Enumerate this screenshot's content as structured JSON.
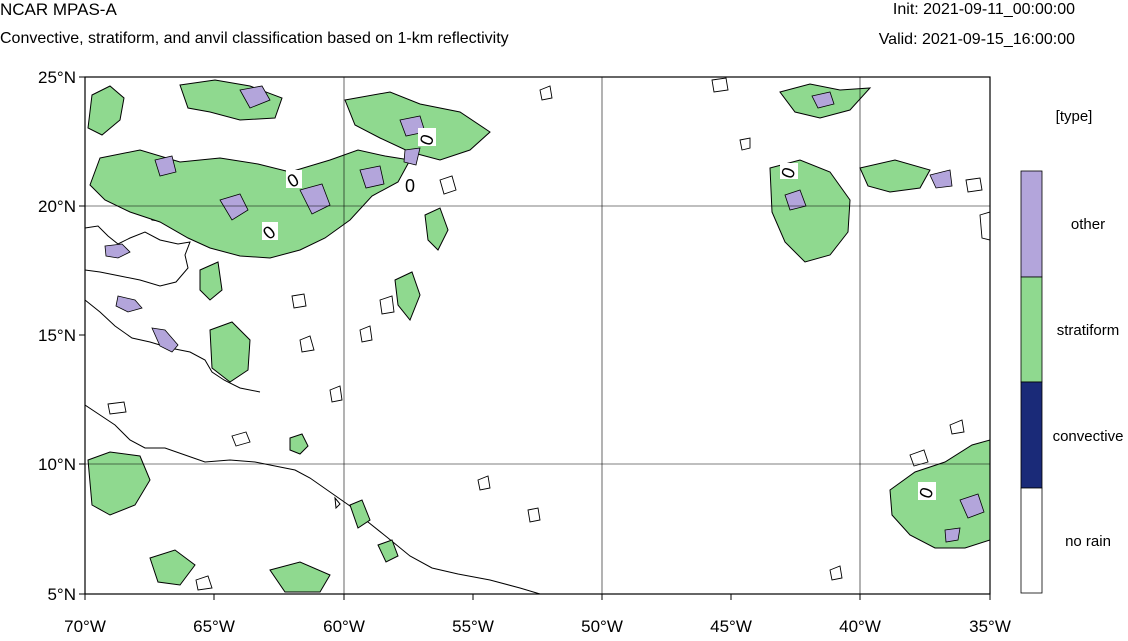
{
  "header": {
    "model": "NCAR MPAS-A",
    "description": "Convective, stratiform, and anvil classification based on 1-km reflectivity",
    "init": "Init: 2021-09-11_00:00:00",
    "valid": "Valid: 2021-09-15_16:00:00"
  },
  "map": {
    "lon_range": [
      -70,
      -35
    ],
    "lat_range": [
      5,
      25
    ],
    "gridlines": true,
    "lat_ticks": [
      {
        "value": 25,
        "label": "25°N"
      },
      {
        "value": 20,
        "label": "20°N"
      },
      {
        "value": 15,
        "label": "15°N"
      },
      {
        "value": 10,
        "label": "10°N"
      },
      {
        "value": 5,
        "label": "5°N"
      }
    ],
    "lon_ticks": [
      {
        "value": -70,
        "label": "70°W"
      },
      {
        "value": -65,
        "label": "65°W"
      },
      {
        "value": -60,
        "label": "60°W"
      },
      {
        "value": -55,
        "label": "55°W"
      },
      {
        "value": -50,
        "label": "50°W"
      },
      {
        "value": -45,
        "label": "45°W"
      },
      {
        "value": -40,
        "label": "40°W"
      },
      {
        "value": -35,
        "label": "35°W"
      }
    ],
    "contour_labels": [
      "0",
      "0",
      "0",
      "0",
      "0",
      "0"
    ]
  },
  "legend": {
    "title": "[type]",
    "items": [
      {
        "label": "other",
        "color": "#b3a5db"
      },
      {
        "label": "stratiform",
        "color": "#8fd98f"
      },
      {
        "label": "convective",
        "color": "#1a2a78"
      },
      {
        "label": "no rain",
        "color": "#ffffff"
      }
    ]
  }
}
